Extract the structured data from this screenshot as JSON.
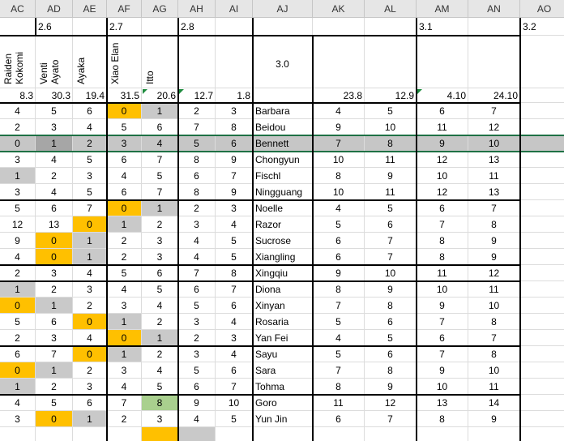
{
  "columns": [
    "AC",
    "AD",
    "AE",
    "AF",
    "AG",
    "AH",
    "AI",
    "AJ",
    "AK",
    "AL",
    "AM",
    "AN",
    "AO"
  ],
  "version_row": {
    "AD": "2.6",
    "AF": "2.7",
    "AH": "2.8",
    "AM": "3.1",
    "AO": "3.2"
  },
  "names_row": {
    "AC": "Raiden Kokomi",
    "AD": "Venti Ayato",
    "AE": "Ayaka",
    "AF": "Xiao Elan",
    "AG": "Itto",
    "AJ": "3.0"
  },
  "stats_row": [
    "8.3",
    "30.3",
    "19.4",
    "31.5",
    "20.6",
    "12.7",
    "1.8",
    "",
    "23.8",
    "12.9",
    "4.10",
    "24.10",
    ""
  ],
  "rows": [
    {
      "name": "Barbara",
      "values": [
        "4",
        "5",
        "6",
        "0",
        "1",
        "2",
        "3",
        "4",
        "5",
        "6",
        "7"
      ],
      "colors": [
        "",
        "",
        "",
        "o",
        "g",
        "",
        "",
        "",
        "",
        "",
        ""
      ]
    },
    {
      "name": "Beidou",
      "values": [
        "2",
        "3",
        "4",
        "5",
        "6",
        "7",
        "8",
        "9",
        "10",
        "11",
        "12"
      ],
      "colors": [
        "",
        "",
        "",
        "",
        "",
        "",
        "",
        "",
        "",
        "",
        ""
      ]
    },
    {
      "name": "Bennett",
      "values": [
        "0",
        "1",
        "2",
        "3",
        "4",
        "5",
        "6",
        "7",
        "8",
        "9",
        "10"
      ],
      "colors": [
        "o",
        "s",
        "",
        "",
        "",
        "",
        "",
        "",
        "",
        "",
        ""
      ],
      "selected": true
    },
    {
      "name": "Chongyun",
      "values": [
        "3",
        "4",
        "5",
        "6",
        "7",
        "8",
        "9",
        "10",
        "11",
        "12",
        "13"
      ],
      "colors": [
        "",
        "",
        "",
        "",
        "",
        "",
        "",
        "",
        "",
        "",
        ""
      ]
    },
    {
      "name": "Fischl",
      "values": [
        "1",
        "2",
        "3",
        "4",
        "5",
        "6",
        "7",
        "8",
        "9",
        "10",
        "11"
      ],
      "colors": [
        "g",
        "",
        "",
        "",
        "",
        "",
        "",
        "",
        "",
        "",
        ""
      ]
    },
    {
      "name": "Ningguang",
      "values": [
        "3",
        "4",
        "5",
        "6",
        "7",
        "8",
        "9",
        "10",
        "11",
        "12",
        "13"
      ],
      "colors": [
        "",
        "",
        "",
        "",
        "",
        "",
        "",
        "",
        "",
        "",
        ""
      ]
    },
    {
      "name": "Noelle",
      "values": [
        "5",
        "6",
        "7",
        "0",
        "1",
        "2",
        "3",
        "4",
        "5",
        "6",
        "7"
      ],
      "colors": [
        "",
        "",
        "",
        "o",
        "g",
        "",
        "",
        "",
        "",
        "",
        ""
      ]
    },
    {
      "name": "Razor",
      "values": [
        "12",
        "13",
        "0",
        "1",
        "2",
        "3",
        "4",
        "5",
        "6",
        "7",
        "8"
      ],
      "colors": [
        "",
        "",
        "o",
        "g",
        "",
        "",
        "",
        "",
        "",
        "",
        ""
      ]
    },
    {
      "name": "Sucrose",
      "values": [
        "9",
        "0",
        "1",
        "2",
        "3",
        "4",
        "5",
        "6",
        "7",
        "8",
        "9"
      ],
      "colors": [
        "",
        "o",
        "g",
        "",
        "",
        "",
        "",
        "",
        "",
        "",
        ""
      ]
    },
    {
      "name": "Xiangling",
      "values": [
        "4",
        "0",
        "1",
        "2",
        "3",
        "4",
        "5",
        "6",
        "7",
        "8",
        "9"
      ],
      "colors": [
        "",
        "o",
        "g",
        "",
        "",
        "",
        "",
        "",
        "",
        "",
        ""
      ]
    },
    {
      "name": "Xingqiu",
      "values": [
        "2",
        "3",
        "4",
        "5",
        "6",
        "7",
        "8",
        "9",
        "10",
        "11",
        "12"
      ],
      "colors": [
        "",
        "",
        "",
        "",
        "",
        "",
        "",
        "",
        "",
        "",
        ""
      ]
    },
    {
      "name": "Diona",
      "values": [
        "1",
        "2",
        "3",
        "4",
        "5",
        "6",
        "7",
        "8",
        "9",
        "10",
        "11"
      ],
      "colors": [
        "g",
        "",
        "",
        "",
        "",
        "",
        "",
        "",
        "",
        "",
        ""
      ]
    },
    {
      "name": "Xinyan",
      "values": [
        "0",
        "1",
        "2",
        "3",
        "4",
        "5",
        "6",
        "7",
        "8",
        "9",
        "10"
      ],
      "colors": [
        "o",
        "g",
        "",
        "",
        "",
        "",
        "",
        "",
        "",
        "",
        ""
      ]
    },
    {
      "name": "Rosaria",
      "values": [
        "5",
        "6",
        "0",
        "1",
        "2",
        "3",
        "4",
        "5",
        "6",
        "7",
        "8"
      ],
      "colors": [
        "",
        "",
        "o",
        "g",
        "",
        "",
        "",
        "",
        "",
        "",
        ""
      ]
    },
    {
      "name": "Yan Fei",
      "values": [
        "2",
        "3",
        "4",
        "0",
        "1",
        "2",
        "3",
        "4",
        "5",
        "6",
        "7"
      ],
      "colors": [
        "",
        "",
        "",
        "o",
        "g",
        "",
        "",
        "",
        "",
        "",
        ""
      ]
    },
    {
      "name": "Sayu",
      "values": [
        "6",
        "7",
        "0",
        "1",
        "2",
        "3",
        "4",
        "5",
        "6",
        "7",
        "8"
      ],
      "colors": [
        "",
        "",
        "o",
        "g",
        "",
        "",
        "",
        "",
        "",
        "",
        ""
      ]
    },
    {
      "name": "Sara",
      "values": [
        "0",
        "1",
        "2",
        "3",
        "4",
        "5",
        "6",
        "7",
        "8",
        "9",
        "10"
      ],
      "colors": [
        "o",
        "g",
        "",
        "",
        "",
        "",
        "",
        "",
        "",
        "",
        ""
      ]
    },
    {
      "name": "Tohma",
      "values": [
        "1",
        "2",
        "3",
        "4",
        "5",
        "6",
        "7",
        "8",
        "9",
        "10",
        "11"
      ],
      "colors": [
        "g",
        "",
        "",
        "",
        "",
        "",
        "",
        "",
        "",
        "",
        ""
      ]
    },
    {
      "name": "Goro",
      "values": [
        "4",
        "5",
        "6",
        "7",
        "8",
        "9",
        "10",
        "11",
        "12",
        "13",
        "14"
      ],
      "colors": [
        "",
        "",
        "",
        "",
        "gr",
        "",
        "",
        "",
        "",
        "",
        ""
      ]
    },
    {
      "name": "Yun Jin",
      "values": [
        "3",
        "0",
        "1",
        "2",
        "3",
        "4",
        "5",
        "6",
        "7",
        "8",
        "9"
      ],
      "colors": [
        "",
        "o",
        "g",
        "",
        "",
        "",
        "",
        "",
        "",
        "",
        ""
      ]
    }
  ],
  "colors": {
    "orange": "#ffc000",
    "gray": "#c9c9c9",
    "green": "#a9d08e",
    "selected_row": "#c6c6c6"
  }
}
